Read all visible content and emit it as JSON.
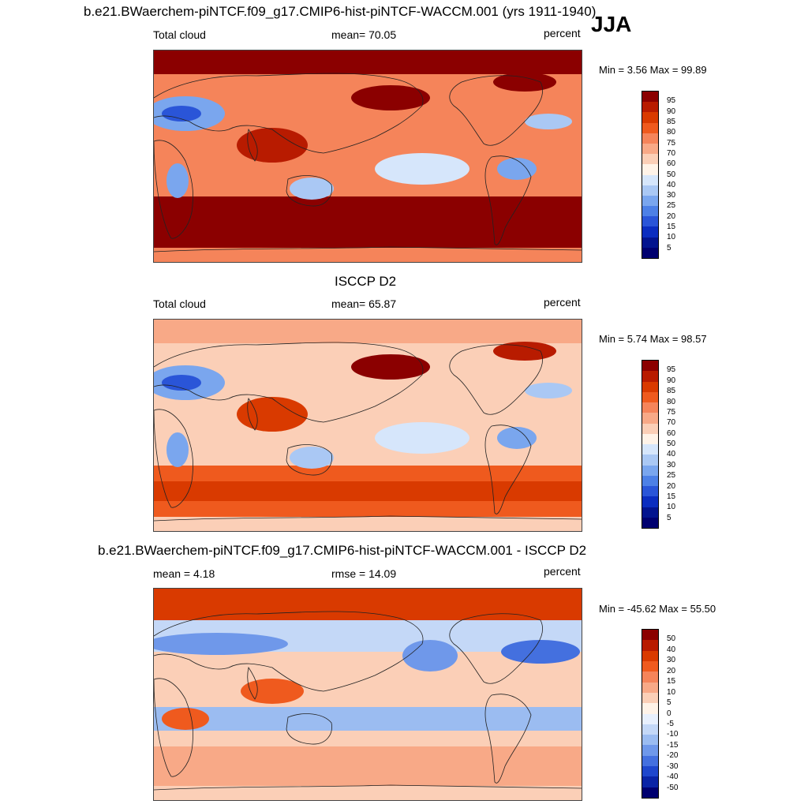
{
  "header": {
    "case_title": "b.e21.BWaerchem-piNTCF.f09_g17.CMIP6-hist-piNTCF-WACCM.001 (yrs 1911-1940)",
    "season": "JJA"
  },
  "panels": [
    {
      "id": "model",
      "title": "",
      "left_label": "Total cloud",
      "center_label": "mean=  70.05",
      "right_label": "percent",
      "minmax": "Min =   3.56 Max =  99.89",
      "scale": "abs",
      "colorbar_levels": [
        "95",
        "90",
        "85",
        "80",
        "75",
        "70",
        "60",
        "50",
        "40",
        "30",
        "25",
        "20",
        "15",
        "10",
        "5"
      ]
    },
    {
      "id": "obs",
      "title": "ISCCP D2",
      "left_label": "Total cloud",
      "center_label": "mean=  65.87",
      "right_label": "percent",
      "minmax": "Min =   5.74 Max =  98.57",
      "scale": "abs",
      "colorbar_levels": [
        "95",
        "90",
        "85",
        "80",
        "75",
        "70",
        "60",
        "50",
        "40",
        "30",
        "25",
        "20",
        "15",
        "10",
        "5"
      ]
    },
    {
      "id": "diff",
      "title": "b.e21.BWaerchem-piNTCF.f09_g17.CMIP6-hist-piNTCF-WACCM.001 - ISCCP D2",
      "left_label": "mean =   4.18",
      "center_label": "rmse =  14.09",
      "right_label": "percent",
      "minmax": "Min = -45.62 Max =  55.50",
      "scale": "diff",
      "colorbar_levels": [
        "50",
        "40",
        "30",
        "20",
        "15",
        "10",
        "5",
        "0",
        "-5",
        "-10",
        "-15",
        "-20",
        "-30",
        "-40",
        "-50"
      ]
    }
  ],
  "colors": {
    "abs_scale": [
      "#8b0000",
      "#b81b00",
      "#d93a00",
      "#ef5a1e",
      "#f5845a",
      "#f8a987",
      "#fbcfb7",
      "#fff3e8",
      "#d6e6fb",
      "#aac8f4",
      "#7aa6ee",
      "#4d80e6",
      "#2a55d8",
      "#0b2dc0",
      "#03148f",
      "#000070"
    ],
    "diff_scale": [
      "#8b0000",
      "#b81b00",
      "#d93a00",
      "#ef5a1e",
      "#f5845a",
      "#f8a987",
      "#fbcfb7",
      "#fff3e8",
      "#e8f0fd",
      "#c4d8f7",
      "#9bbcf1",
      "#6f98ea",
      "#4470df",
      "#1f47cd",
      "#0a24a6",
      "#000070"
    ],
    "coastline": "#222222"
  }
}
